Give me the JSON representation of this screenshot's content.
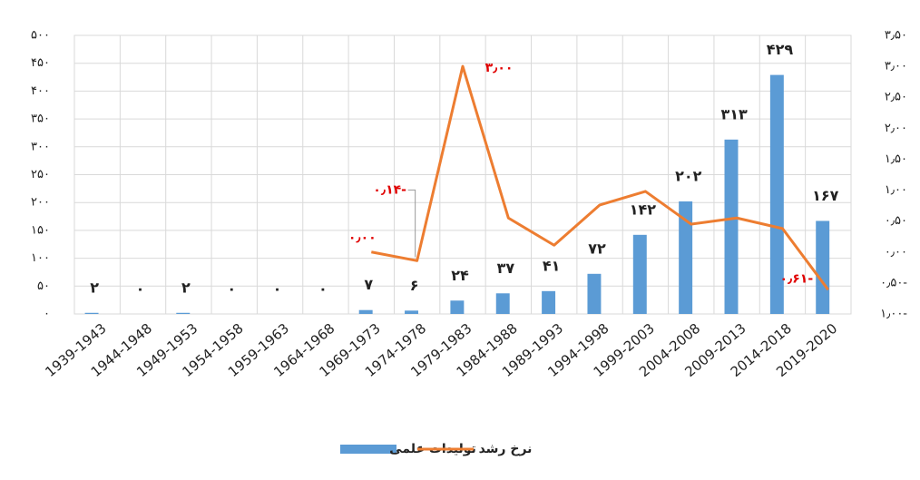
{
  "chart_data": {
    "type": "bar-line",
    "categories": [
      "1939-1943",
      "1944-1948",
      "1949-1953",
      "1954-1958",
      "1959-1963",
      "1964-1968",
      "1969-1973",
      "1974-1978",
      "1979-1983",
      "1984-1988",
      "1989-1993",
      "1994-1998",
      "1999-2003",
      "2004-2008",
      "2009-2013",
      "2014-2018",
      "2019-2020"
    ],
    "series": [
      {
        "name": "تولیدات علمی",
        "type": "bar",
        "color": "#5b9bd5",
        "axis": "y",
        "values": [
          2,
          0,
          2,
          0,
          0,
          0,
          7,
          6,
          24,
          37,
          41,
          72,
          142,
          202,
          313,
          429,
          167
        ],
        "value_labels": [
          "۲",
          "۰",
          "۲",
          "۰",
          "۰",
          "۰",
          "۷",
          "۶",
          "۲۴",
          "۳۷",
          "۴۱",
          "۷۲",
          "۱۴۲",
          "۲۰۲",
          "۳۱۳",
          "۴۲۹",
          "۱۶۷"
        ]
      },
      {
        "name": "نرخ رشد",
        "type": "line",
        "color": "#ed7d31",
        "axis": "y2",
        "values": [
          null,
          null,
          null,
          null,
          null,
          null,
          0.0,
          -0.14,
          3.0,
          0.55,
          0.11,
          0.76,
          0.98,
          0.45,
          0.55,
          0.38,
          -0.61
        ],
        "value_labels": [
          null,
          null,
          null,
          null,
          null,
          null,
          "۰٫۰۰",
          "۰٫۱۴-",
          "۳٫۰۰",
          null,
          null,
          null,
          null,
          null,
          null,
          null,
          "۰٫۶۱-"
        ]
      }
    ],
    "ylim": [
      0,
      500
    ],
    "yticks": [
      {
        "value": 0,
        "label": "۰"
      },
      {
        "value": 50,
        "label": "۵۰"
      },
      {
        "value": 100,
        "label": "۱۰۰"
      },
      {
        "value": 150,
        "label": "۱۵۰"
      },
      {
        "value": 200,
        "label": "۲۰۰"
      },
      {
        "value": 250,
        "label": "۲۵۰"
      },
      {
        "value": 300,
        "label": "۳۰۰"
      },
      {
        "value": 350,
        "label": "۳۵۰"
      },
      {
        "value": 400,
        "label": "۴۰۰"
      },
      {
        "value": 450,
        "label": "۴۵۰"
      },
      {
        "value": 500,
        "label": "۵۰۰"
      }
    ],
    "y2lim": [
      -1,
      3.5
    ],
    "y2ticks": [
      {
        "value": -1,
        "label": "۱٫۰۰-"
      },
      {
        "value": -0.5,
        "label": "۰٫۵۰-"
      },
      {
        "value": 0,
        "label": "۰٫۰۰"
      },
      {
        "value": 0.5,
        "label": "۰٫۵۰"
      },
      {
        "value": 1,
        "label": "۱٫۰۰"
      },
      {
        "value": 1.5,
        "label": "۱٫۵۰"
      },
      {
        "value": 2,
        "label": "۲٫۰۰"
      },
      {
        "value": 2.5,
        "label": "۲٫۵۰"
      },
      {
        "value": 3,
        "label": "۳٫۰۰"
      },
      {
        "value": 3.5,
        "label": "۳٫۵۰"
      }
    ],
    "grid": true,
    "legend": "bottom"
  }
}
